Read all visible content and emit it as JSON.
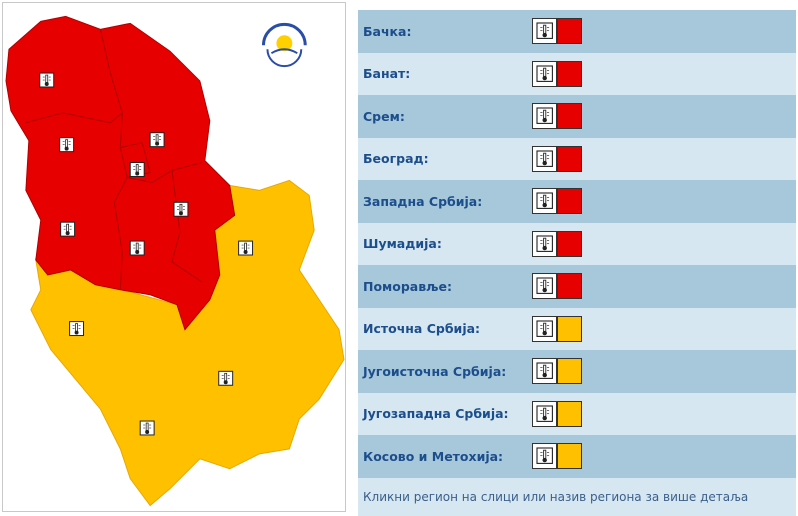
{
  "regions": [
    {
      "name": "Бачка:",
      "color": "#e60000"
    },
    {
      "name": "Банат:",
      "color": "#e60000"
    },
    {
      "name": "Срем:",
      "color": "#e60000"
    },
    {
      "name": "Београд:",
      "color": "#e60000"
    },
    {
      "name": "Западна Србија:",
      "color": "#e60000"
    },
    {
      "name": "Шумадија:",
      "color": "#e60000"
    },
    {
      "name": "Поморавље:",
      "color": "#e60000"
    },
    {
      "name": "Источна Србија:",
      "color": "#ffc000"
    },
    {
      "name": "Југоисточна Србија:",
      "color": "#ffc000"
    },
    {
      "name": "Југозападна Србија:",
      "color": "#ffc000"
    },
    {
      "name": "Косово и Метохија:",
      "color": "#ffc000"
    }
  ],
  "footer": "Кликни регион на слици или назив региона за више детаља"
}
